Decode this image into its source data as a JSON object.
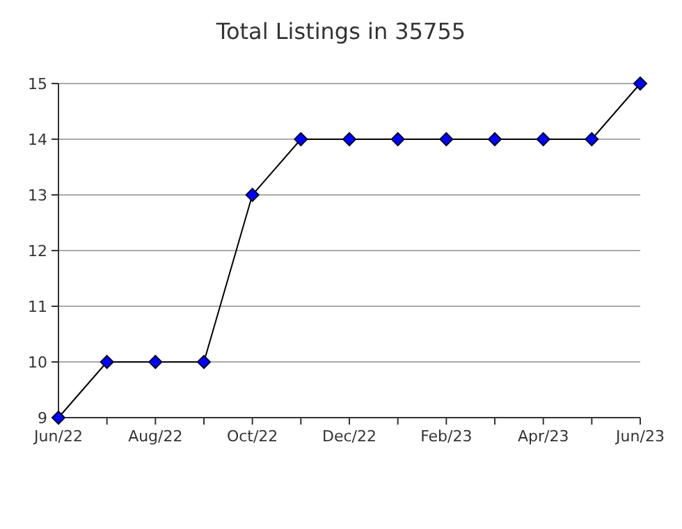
{
  "chart_data": {
    "type": "line",
    "title": "Total Listings in 35755",
    "categories": [
      "Jun/22",
      null,
      "Aug/22",
      null,
      "Oct/22",
      null,
      "Dec/22",
      null,
      "Feb/23",
      null,
      "Apr/23",
      null,
      "Jun/23"
    ],
    "series": [
      {
        "color": "#0000ff",
        "values": [
          9,
          10,
          10,
          10,
          13,
          14,
          14,
          14,
          14,
          14,
          14,
          14,
          15
        ]
      }
    ],
    "ylim": [
      9,
      15
    ],
    "yticks": [
      9,
      10,
      11,
      12,
      13,
      14,
      15
    ],
    "grid": "y",
    "marker": "diamond",
    "line_style": "solid"
  }
}
